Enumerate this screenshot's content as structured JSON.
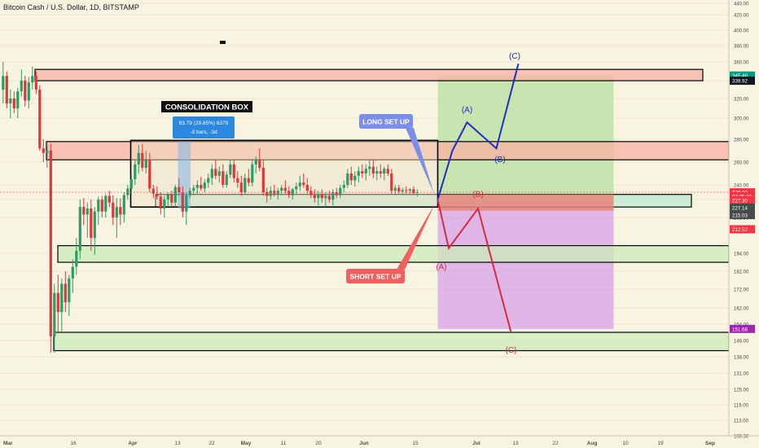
{
  "header": {
    "symbol_title": "Bitcoin Cash / U.S. Dollar, 1D, BITSTAMP"
  },
  "chart_data": {
    "type": "candlestick",
    "ylim": [
      108.3,
      440
    ],
    "y_ticks": [
      440.0,
      420.0,
      400.0,
      380.0,
      360.0,
      340.0,
      320.0,
      300.0,
      280.0,
      260.0,
      240.0,
      220.0,
      208.0,
      194.0,
      182.0,
      172.0,
      162.0,
      154.0,
      146.0,
      138.0,
      131.0,
      125.0,
      119.0,
      113.0,
      108.3
    ],
    "x_ticks": [
      "Mar",
      "16",
      "Apr",
      "13",
      "22",
      "May",
      "11",
      "20",
      "Jun",
      "15",
      "Jul",
      "13",
      "22",
      "Aug",
      "10",
      "19",
      "Sep"
    ],
    "price_labels": [
      {
        "value": "345.46",
        "price": 345.46,
        "color": "#089981"
      },
      {
        "value": "339.92",
        "price": 339.92,
        "color": "#131722"
      },
      {
        "value": "229.92",
        "price": 229.92,
        "color": "#f23645"
      },
      {
        "value": "07:25:31",
        "price": 224.4,
        "color": "#f23645"
      },
      {
        "value": "227.30",
        "price": 219.5,
        "color": "#f23645"
      },
      {
        "value": "227.14",
        "price": 214.6,
        "color": "#4a4a4a"
      },
      {
        "value": "215.03",
        "price": 209.6,
        "color": "#4a4a4a"
      },
      {
        "value": "212.52",
        "price": 203.4,
        "color": "#f23645"
      },
      {
        "value": "151.68",
        "price": 151.68,
        "color": "#9c27b0"
      }
    ],
    "candles": [
      {
        "d": 0,
        "o": 330,
        "h": 360,
        "l": 315,
        "c": 345
      },
      {
        "d": 1,
        "o": 345,
        "h": 350,
        "l": 310,
        "c": 315
      },
      {
        "d": 2,
        "o": 315,
        "h": 330,
        "l": 300,
        "c": 320
      },
      {
        "d": 3,
        "o": 320,
        "h": 328,
        "l": 305,
        "c": 310
      },
      {
        "d": 4,
        "o": 310,
        "h": 332,
        "l": 300,
        "c": 328
      },
      {
        "d": 5,
        "o": 328,
        "h": 352,
        "l": 322,
        "c": 340
      },
      {
        "d": 6,
        "o": 340,
        "h": 345,
        "l": 312,
        "c": 318
      },
      {
        "d": 7,
        "o": 318,
        "h": 344,
        "l": 310,
        "c": 338
      },
      {
        "d": 8,
        "o": 338,
        "h": 355,
        "l": 330,
        "c": 345
      },
      {
        "d": 9,
        "o": 345,
        "h": 350,
        "l": 325,
        "c": 330
      },
      {
        "d": 10,
        "o": 330,
        "h": 335,
        "l": 270,
        "c": 272
      },
      {
        "d": 11,
        "o": 272,
        "h": 280,
        "l": 260,
        "c": 268
      },
      {
        "d": 12,
        "o": 268,
        "h": 275,
        "l": 255,
        "c": 270
      },
      {
        "d": 13,
        "o": 270,
        "h": 276,
        "l": 140,
        "c": 148
      },
      {
        "d": 14,
        "o": 148,
        "h": 175,
        "l": 140,
        "c": 170
      },
      {
        "d": 15,
        "o": 170,
        "h": 180,
        "l": 150,
        "c": 160
      },
      {
        "d": 16,
        "o": 160,
        "h": 178,
        "l": 150,
        "c": 175
      },
      {
        "d": 17,
        "o": 175,
        "h": 182,
        "l": 160,
        "c": 165
      },
      {
        "d": 18,
        "o": 165,
        "h": 180,
        "l": 158,
        "c": 178
      },
      {
        "d": 19,
        "o": 178,
        "h": 190,
        "l": 170,
        "c": 185
      },
      {
        "d": 20,
        "o": 185,
        "h": 200,
        "l": 180,
        "c": 195
      },
      {
        "d": 21,
        "o": 195,
        "h": 220,
        "l": 190,
        "c": 215
      },
      {
        "d": 22,
        "o": 215,
        "h": 222,
        "l": 205,
        "c": 210
      },
      {
        "d": 23,
        "o": 210,
        "h": 218,
        "l": 200,
        "c": 214
      },
      {
        "d": 24,
        "o": 214,
        "h": 220,
        "l": 195,
        "c": 200
      },
      {
        "d": 25,
        "o": 200,
        "h": 215,
        "l": 193,
        "c": 212
      },
      {
        "d": 26,
        "o": 212,
        "h": 224,
        "l": 205,
        "c": 220
      },
      {
        "d": 27,
        "o": 220,
        "h": 225,
        "l": 208,
        "c": 212
      },
      {
        "d": 28,
        "o": 212,
        "h": 228,
        "l": 208,
        "c": 225
      },
      {
        "d": 29,
        "o": 225,
        "h": 232,
        "l": 215,
        "c": 218
      },
      {
        "d": 30,
        "o": 218,
        "h": 226,
        "l": 205,
        "c": 208
      },
      {
        "d": 31,
        "o": 208,
        "h": 222,
        "l": 200,
        "c": 215
      },
      {
        "d": 32,
        "o": 215,
        "h": 222,
        "l": 205,
        "c": 210
      },
      {
        "d": 33,
        "o": 210,
        "h": 230,
        "l": 206,
        "c": 226
      },
      {
        "d": 34,
        "o": 226,
        "h": 240,
        "l": 220,
        "c": 235
      },
      {
        "d": 35,
        "o": 235,
        "h": 250,
        "l": 228,
        "c": 245
      },
      {
        "d": 36,
        "o": 245,
        "h": 262,
        "l": 240,
        "c": 258
      },
      {
        "d": 37,
        "o": 258,
        "h": 275,
        "l": 250,
        "c": 268
      },
      {
        "d": 38,
        "o": 268,
        "h": 276,
        "l": 252,
        "c": 255
      },
      {
        "d": 39,
        "o": 255,
        "h": 270,
        "l": 250,
        "c": 262
      },
      {
        "d": 40,
        "o": 262,
        "h": 268,
        "l": 230,
        "c": 235
      },
      {
        "d": 41,
        "o": 235,
        "h": 240,
        "l": 222,
        "c": 228
      },
      {
        "d": 42,
        "o": 228,
        "h": 238,
        "l": 220,
        "c": 224
      },
      {
        "d": 43,
        "o": 224,
        "h": 230,
        "l": 210,
        "c": 214
      },
      {
        "d": 44,
        "o": 214,
        "h": 225,
        "l": 208,
        "c": 220
      },
      {
        "d": 45,
        "o": 220,
        "h": 230,
        "l": 215,
        "c": 227
      },
      {
        "d": 46,
        "o": 227,
        "h": 232,
        "l": 215,
        "c": 218
      },
      {
        "d": 47,
        "o": 218,
        "h": 240,
        "l": 215,
        "c": 237
      },
      {
        "d": 48,
        "o": 237,
        "h": 246,
        "l": 225,
        "c": 230
      },
      {
        "d": 49,
        "o": 230,
        "h": 238,
        "l": 208,
        "c": 212
      },
      {
        "d": 50,
        "o": 212,
        "h": 230,
        "l": 205,
        "c": 226
      },
      {
        "d": 51,
        "o": 226,
        "h": 236,
        "l": 222,
        "c": 232
      },
      {
        "d": 52,
        "o": 232,
        "h": 240,
        "l": 226,
        "c": 236
      },
      {
        "d": 53,
        "o": 236,
        "h": 244,
        "l": 228,
        "c": 240
      },
      {
        "d": 54,
        "o": 240,
        "h": 247,
        "l": 232,
        "c": 235
      },
      {
        "d": 55,
        "o": 235,
        "h": 245,
        "l": 230,
        "c": 242
      },
      {
        "d": 56,
        "o": 242,
        "h": 250,
        "l": 236,
        "c": 246
      },
      {
        "d": 57,
        "o": 246,
        "h": 258,
        "l": 240,
        "c": 254
      },
      {
        "d": 58,
        "o": 254,
        "h": 262,
        "l": 245,
        "c": 248
      },
      {
        "d": 59,
        "o": 248,
        "h": 256,
        "l": 242,
        "c": 252
      },
      {
        "d": 60,
        "o": 252,
        "h": 258,
        "l": 236,
        "c": 240
      },
      {
        "d": 61,
        "o": 240,
        "h": 252,
        "l": 236,
        "c": 249
      },
      {
        "d": 62,
        "o": 249,
        "h": 262,
        "l": 246,
        "c": 258
      },
      {
        "d": 63,
        "o": 258,
        "h": 262,
        "l": 242,
        "c": 246
      },
      {
        "d": 64,
        "o": 246,
        "h": 252,
        "l": 236,
        "c": 242
      },
      {
        "d": 65,
        "o": 242,
        "h": 248,
        "l": 225,
        "c": 230
      },
      {
        "d": 66,
        "o": 230,
        "h": 250,
        "l": 228,
        "c": 246
      },
      {
        "d": 67,
        "o": 246,
        "h": 254,
        "l": 238,
        "c": 242
      },
      {
        "d": 68,
        "o": 242,
        "h": 262,
        "l": 238,
        "c": 258
      },
      {
        "d": 69,
        "o": 258,
        "h": 265,
        "l": 250,
        "c": 262
      },
      {
        "d": 70,
        "o": 262,
        "h": 272,
        "l": 252,
        "c": 255
      },
      {
        "d": 71,
        "o": 255,
        "h": 262,
        "l": 225,
        "c": 230
      },
      {
        "d": 72,
        "o": 230,
        "h": 236,
        "l": 218,
        "c": 225
      },
      {
        "d": 73,
        "o": 225,
        "h": 238,
        "l": 220,
        "c": 232
      },
      {
        "d": 74,
        "o": 232,
        "h": 240,
        "l": 224,
        "c": 228
      },
      {
        "d": 75,
        "o": 228,
        "h": 236,
        "l": 220,
        "c": 232
      },
      {
        "d": 76,
        "o": 232,
        "h": 240,
        "l": 226,
        "c": 236
      },
      {
        "d": 77,
        "o": 236,
        "h": 244,
        "l": 228,
        "c": 232
      },
      {
        "d": 78,
        "o": 232,
        "h": 238,
        "l": 222,
        "c": 226
      },
      {
        "d": 79,
        "o": 226,
        "h": 236,
        "l": 220,
        "c": 234
      },
      {
        "d": 80,
        "o": 234,
        "h": 242,
        "l": 228,
        "c": 238
      },
      {
        "d": 81,
        "o": 238,
        "h": 248,
        "l": 232,
        "c": 242
      },
      {
        "d": 82,
        "o": 242,
        "h": 250,
        "l": 236,
        "c": 240
      },
      {
        "d": 83,
        "o": 240,
        "h": 246,
        "l": 228,
        "c": 232
      },
      {
        "d": 84,
        "o": 232,
        "h": 238,
        "l": 222,
        "c": 226
      },
      {
        "d": 85,
        "o": 226,
        "h": 234,
        "l": 218,
        "c": 222
      },
      {
        "d": 86,
        "o": 222,
        "h": 232,
        "l": 216,
        "c": 228
      },
      {
        "d": 87,
        "o": 228,
        "h": 234,
        "l": 218,
        "c": 222
      },
      {
        "d": 88,
        "o": 222,
        "h": 230,
        "l": 215,
        "c": 225
      },
      {
        "d": 89,
        "o": 225,
        "h": 232,
        "l": 218,
        "c": 220
      },
      {
        "d": 90,
        "o": 220,
        "h": 234,
        "l": 216,
        "c": 230
      },
      {
        "d": 91,
        "o": 230,
        "h": 236,
        "l": 222,
        "c": 226
      },
      {
        "d": 92,
        "o": 226,
        "h": 240,
        "l": 222,
        "c": 236
      },
      {
        "d": 93,
        "o": 236,
        "h": 244,
        "l": 230,
        "c": 240
      },
      {
        "d": 94,
        "o": 240,
        "h": 254,
        "l": 236,
        "c": 250
      },
      {
        "d": 95,
        "o": 250,
        "h": 256,
        "l": 240,
        "c": 244
      },
      {
        "d": 96,
        "o": 244,
        "h": 252,
        "l": 238,
        "c": 248
      },
      {
        "d": 97,
        "o": 248,
        "h": 256,
        "l": 242,
        "c": 252
      },
      {
        "d": 98,
        "o": 252,
        "h": 258,
        "l": 246,
        "c": 250
      },
      {
        "d": 99,
        "o": 250,
        "h": 258,
        "l": 244,
        "c": 254
      },
      {
        "d": 100,
        "o": 254,
        "h": 262,
        "l": 248,
        "c": 256
      },
      {
        "d": 101,
        "o": 256,
        "h": 262,
        "l": 246,
        "c": 250
      },
      {
        "d": 102,
        "o": 250,
        "h": 256,
        "l": 244,
        "c": 252
      },
      {
        "d": 103,
        "o": 252,
        "h": 258,
        "l": 246,
        "c": 250
      },
      {
        "d": 104,
        "o": 250,
        "h": 256,
        "l": 244,
        "c": 254
      },
      {
        "d": 105,
        "o": 254,
        "h": 258,
        "l": 248,
        "c": 250
      },
      {
        "d": 106,
        "o": 250,
        "h": 254,
        "l": 228,
        "c": 232
      },
      {
        "d": 107,
        "o": 232,
        "h": 240,
        "l": 226,
        "c": 236
      },
      {
        "d": 108,
        "o": 236,
        "h": 240,
        "l": 228,
        "c": 231
      },
      {
        "d": 109,
        "o": 231,
        "h": 236,
        "l": 226,
        "c": 233
      },
      {
        "d": 110,
        "o": 233,
        "h": 238,
        "l": 228,
        "c": 232
      },
      {
        "d": 111,
        "o": 232,
        "h": 236,
        "l": 226,
        "c": 234
      },
      {
        "d": 112,
        "o": 234,
        "h": 238,
        "l": 226,
        "c": 229
      },
      {
        "d": 113,
        "o": 229,
        "h": 234,
        "l": 224,
        "c": 229.92
      }
    ],
    "zones": [
      {
        "name": "resistance-zone-top",
        "y1": 339.92,
        "y2": 352,
        "fill": "#f7b2a3",
        "stroke": "#000000"
      },
      {
        "name": "resistance-zone-mid",
        "y1": 262,
        "y2": 278,
        "fill": "#f7b2a3",
        "stroke": "#000000"
      },
      {
        "name": "support-zone-consolidation",
        "y1": 215,
        "y2": 227,
        "fill": "#bfe9d3",
        "stroke": "#000000"
      },
      {
        "name": "support-zone-194",
        "y1": 188,
        "y2": 197,
        "fill": "#ccebb9",
        "stroke": "#000000"
      },
      {
        "name": "support-zone-146",
        "y1": 141,
        "y2": 150,
        "fill": "#ccebb9",
        "stroke": "#000000"
      }
    ],
    "consolidation_box": {
      "d1": 35,
      "d2": 119,
      "y1": 215,
      "y2": 279
    },
    "measure": {
      "d1": 47,
      "d2": 50,
      "y1": 214,
      "y2": 278
    },
    "positions": {
      "entry_day": 119,
      "exit_day": 167,
      "entry": 220,
      "target_long": 345.46,
      "stop": 151.68
    },
    "long_path": [
      [
        119,
        220
      ],
      [
        123,
        270
      ],
      [
        127,
        296
      ],
      [
        135,
        272
      ],
      [
        141,
        358
      ]
    ],
    "short_path": [
      [
        119,
        220
      ],
      [
        122,
        196
      ],
      [
        130,
        214
      ],
      [
        139,
        150
      ]
    ],
    "wave_labels_long": [
      {
        "text": "(C)",
        "d": 140,
        "p": 364,
        "color": "#1e2fbf"
      },
      {
        "text": "(A)",
        "d": 127,
        "p": 306,
        "color": "#1e2fbf"
      },
      {
        "text": "(B)",
        "d": 136,
        "p": 260,
        "color": "#1e2fbf"
      }
    ],
    "wave_labels_short": [
      {
        "text": "(B)",
        "d": 130,
        "p": 224,
        "color": "#d62b45"
      },
      {
        "text": "(A)",
        "d": 120,
        "p": 183,
        "color": "#d62b45"
      },
      {
        "text": "(C)",
        "d": 139,
        "p": 140,
        "color": "#d62b45"
      }
    ],
    "annotations": {
      "consolidation_title": "CONSOLIDATION BOX",
      "measure_line1": "63.79 (29.85%) 6379",
      "measure_line2": "-3 bars, -3d",
      "long_label": "LONG SET UP",
      "short_label": "SHORT SET UP"
    }
  }
}
